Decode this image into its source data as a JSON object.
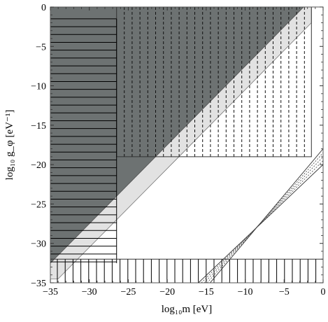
{
  "chart_data": {
    "type": "area",
    "xlabel": "log₁₀m [eV]",
    "ylabel": "log₁₀ g_φ [eV⁻¹]",
    "xlim": [
      -35,
      0
    ],
    "ylim": [
      -35,
      0
    ],
    "x_ticks": [
      -35,
      -30,
      -25,
      -20,
      -15,
      -10,
      -5,
      0
    ],
    "y_ticks": [
      0,
      -5,
      -10,
      -15,
      -20,
      -25,
      -30,
      -35
    ],
    "x_tick_labels": [
      "−35",
      "−30",
      "−25",
      "−20",
      "−15",
      "−10",
      "−5",
      "0"
    ],
    "y_tick_labels": [
      "0",
      "−5",
      "−10",
      "−15",
      "−20",
      "−25",
      "−30",
      "−35"
    ],
    "grid": false,
    "regions": [
      {
        "id": "dark-triangle",
        "style": "dark-gray-fill",
        "vertices": [
          [
            -35,
            0
          ],
          [
            -2.5,
            0
          ],
          [
            -35,
            -32.5
          ]
        ]
      },
      {
        "id": "light-band",
        "style": "light-gray-fill",
        "vertices": [
          [
            -2.5,
            0
          ],
          [
            -1.5,
            0
          ],
          [
            -1.5,
            -2
          ],
          [
            -34,
            -34.5
          ],
          [
            -35,
            -34.5
          ],
          [
            -35,
            -32.5
          ]
        ]
      },
      {
        "id": "left-strip",
        "style": "horizontal-hatch",
        "x_range": [
          -35,
          -26.5
        ],
        "y_range": [
          -32.5,
          -1.5
        ]
      },
      {
        "id": "top-block",
        "style": "vertical-dashed-hatch",
        "x_range": [
          -26.5,
          -1.5
        ],
        "y_range": [
          -19,
          0
        ]
      },
      {
        "id": "bottom-strip",
        "style": "vertical-hatch",
        "x_range": [
          -35,
          0
        ],
        "y_range": [
          -35,
          -32
        ]
      },
      {
        "id": "diagonal-band",
        "style": "dotted-hatch",
        "vertices": [
          [
            -16,
            -35
          ],
          [
            -14.5,
            -35
          ],
          [
            0,
            -18
          ],
          [
            0,
            -20
          ]
        ]
      }
    ]
  }
}
